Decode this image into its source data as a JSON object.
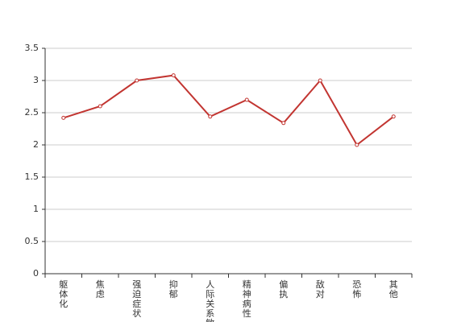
{
  "chart_data": {
    "type": "line",
    "categories": [
      "躯体化",
      "焦虑",
      "强迫症状",
      "抑郁",
      "人际关系敏感",
      "精神病性",
      "偏执",
      "敌对",
      "恐怖",
      "其他"
    ],
    "values": [
      2.42,
      2.6,
      3.0,
      3.08,
      2.44,
      2.7,
      2.34,
      3.0,
      2.0,
      2.44
    ],
    "color": "#c23531",
    "ylim": [
      0,
      3.5
    ],
    "yticks": [
      0,
      0.5,
      1,
      1.5,
      2,
      2.5,
      3,
      3.5
    ],
    "grid": true
  }
}
